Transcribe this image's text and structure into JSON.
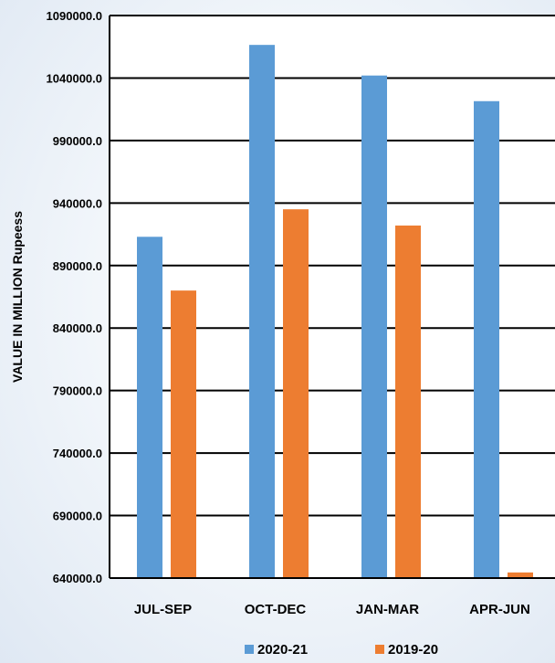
{
  "chart_data": {
    "type": "bar",
    "title": "",
    "xlabel": "",
    "ylabel": "VALUE IN MILLION Rupeess",
    "categories": [
      "JUL-SEP",
      "OCT-DEC",
      "JAN-MAR",
      "APR-JUN"
    ],
    "series": [
      {
        "name": "2020-21",
        "color": "#5b9bd5",
        "values": [
          913000,
          1066500,
          1042000,
          1021500
        ]
      },
      {
        "name": "2019-20",
        "color": "#ed7d31",
        "values": [
          870000,
          935000,
          922000,
          644500
        ]
      }
    ],
    "ylim": [
      640000,
      1090000
    ],
    "yticks": [
      640000,
      690000,
      740000,
      790000,
      840000,
      890000,
      940000,
      990000,
      1040000,
      1090000
    ],
    "ytick_labels": [
      "640000.0",
      "690000.0",
      "740000.0",
      "790000.0",
      "840000.0",
      "890000.0",
      "940000.0",
      "990000.0",
      "1040000.0",
      "1090000.0"
    ],
    "grid": true,
    "legend_position": "bottom"
  }
}
